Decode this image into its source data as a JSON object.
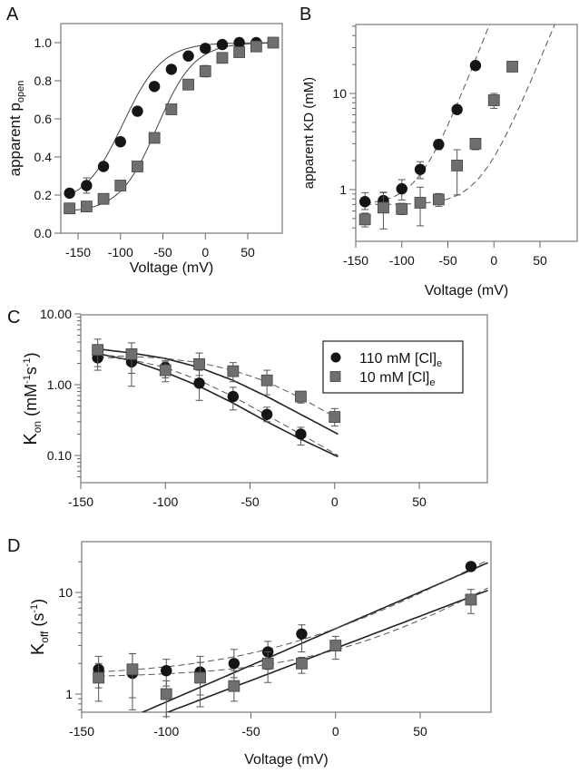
{
  "figure": {
    "panels": [
      "A",
      "B",
      "C",
      "D"
    ]
  },
  "legend": {
    "series1": {
      "label": "110 mM [Cl]",
      "subscript": "e",
      "marker": "circle",
      "color": "#151515"
    },
    "series2": {
      "label": "10 mM [Cl]",
      "subscript": "e",
      "marker": "square",
      "color": "#6f6f6f"
    }
  },
  "chart_data": [
    {
      "panel": "A",
      "type": "line",
      "xlabel": "Voltage (mV)",
      "ylabel": "apparent p",
      "ylabel_sub": "open",
      "xlim": [
        -170,
        90
      ],
      "ylim": [
        0.0,
        1.1
      ],
      "xticks": [
        -150,
        -100,
        -50,
        0,
        50
      ],
      "yticks": [
        0.0,
        0.2,
        0.4,
        0.6,
        0.8,
        1.0
      ],
      "ytick_labels": [
        "0.0",
        "0.2",
        "0.4",
        "0.6",
        "0.8",
        "1.0"
      ],
      "yscale": "linear",
      "series": [
        {
          "name": "110 mM [Cl]e",
          "marker": "circle",
          "x": [
            -160,
            -140,
            -120,
            -100,
            -80,
            -60,
            -40,
            -20,
            0,
            20,
            40,
            60,
            80
          ],
          "y": [
            0.21,
            0.25,
            0.35,
            0.48,
            0.64,
            0.77,
            0.86,
            0.93,
            0.97,
            0.99,
            1.0,
            1.0,
            1.0
          ],
          "err": [
            0.01,
            0.04,
            0.02,
            0.01,
            0.02,
            0.02,
            0.02,
            0.01,
            0.01,
            0.01,
            0.01,
            0.0,
            0.0
          ]
        },
        {
          "name": "10 mM [Cl]e",
          "marker": "square",
          "x": [
            -160,
            -140,
            -120,
            -100,
            -80,
            -60,
            -40,
            -20,
            0,
            20,
            40,
            60,
            80
          ],
          "y": [
            0.13,
            0.14,
            0.18,
            0.25,
            0.35,
            0.5,
            0.65,
            0.78,
            0.85,
            0.92,
            0.95,
            0.98,
            1.0
          ],
          "err": [
            0.0,
            0.01,
            0.01,
            0.01,
            0.01,
            0.01,
            0.01,
            0.01,
            0.03,
            0.01,
            0.01,
            0.0,
            0.0
          ]
        }
      ],
      "fits": [
        {
          "series": "110 mM [Cl]e",
          "style": "solid",
          "kind": "boltzmann",
          "vhalf": -97,
          "slope": 23,
          "bottom": 0.15,
          "top": 1.0
        },
        {
          "series": "10 mM [Cl]e",
          "style": "solid",
          "kind": "boltzmann",
          "vhalf": -57,
          "slope": 22,
          "bottom": 0.11,
          "top": 1.0
        }
      ]
    },
    {
      "panel": "B",
      "type": "scatter",
      "xlabel": "Voltage (mV)",
      "ylabel": "apparent KD (mM)",
      "xlim": [
        -150,
        90
      ],
      "ylim": [
        0.4,
        50
      ],
      "yscale": "log",
      "xticks": [
        -150,
        -100,
        -50,
        0,
        50
      ],
      "yticks": [
        1,
        10
      ],
      "ytick_labels": [
        "1",
        "10"
      ],
      "series": [
        {
          "name": "110 mM [Cl]e",
          "marker": "circle",
          "x": [
            -140,
            -120,
            -100,
            -80,
            -60,
            -40,
            -20
          ],
          "y": [
            0.75,
            0.77,
            1.02,
            1.62,
            2.95,
            6.8,
            19.5
          ],
          "err_lo": [
            0.62,
            0.62,
            0.78,
            1.3,
            2.6,
            6.2,
            18.5
          ],
          "err_hi": [
            0.93,
            0.94,
            1.27,
            1.95,
            3.3,
            7.4,
            20.5
          ]
        },
        {
          "name": "10 mM [Cl]e",
          "marker": "square",
          "x": [
            -140,
            -120,
            -100,
            -80,
            -60,
            -40,
            -20,
            0,
            20
          ],
          "y": [
            0.49,
            0.65,
            0.63,
            0.73,
            0.79,
            1.78,
            3.0,
            8.5,
            19.0
          ],
          "err_lo": [
            0.41,
            0.39,
            0.55,
            0.42,
            0.67,
            0.88,
            2.6,
            7.0,
            18.0
          ],
          "err_hi": [
            0.57,
            0.93,
            0.72,
            1.06,
            0.91,
            2.6,
            3.4,
            10.0,
            20.0
          ]
        }
      ],
      "fits": [
        {
          "series": "110 mM [Cl]e",
          "style": "dashed",
          "kind": "kd",
          "k0": 0.7,
          "a": 7.2e-06,
          "b": 0.0594
        },
        {
          "series": "10 mM [Cl]e",
          "style": "dashed",
          "kind": "kd",
          "k0": 0.7,
          "a": 0.3,
          "b": 0.0507
        }
      ]
    },
    {
      "panel": "C",
      "type": "scatter",
      "xlabel": "",
      "ylabel": "K",
      "ylabel_sub": "on",
      "ylabel_unit": "(mM",
      "ylabel_unit_sup1": "-1",
      "ylabel_unit_mid": "s",
      "ylabel_unit_sup2": "-1",
      "ylabel_unit_end": ")",
      "xlim": [
        -150,
        90
      ],
      "ylim": [
        0.04,
        10
      ],
      "yscale": "log",
      "xticks": [
        -150,
        -100,
        -50,
        0,
        50
      ],
      "yticks": [
        0.1,
        1,
        10
      ],
      "ytick_labels": [
        "0.10",
        "1.00",
        "10.00"
      ],
      "legend_position": "top-right",
      "series": [
        {
          "name": "110 mM [Cl]e",
          "marker": "circle",
          "x": [
            -140,
            -120,
            -100,
            -80,
            -60,
            -40,
            -20
          ],
          "y": [
            2.4,
            2.1,
            1.75,
            1.05,
            0.68,
            0.38,
            0.2
          ],
          "err_lo": [
            1.6,
            1.45,
            1.25,
            0.6,
            0.44,
            0.3,
            0.14
          ],
          "err_hi": [
            2.8,
            2.8,
            2.1,
            1.6,
            0.92,
            0.48,
            0.25
          ]
        },
        {
          "name": "10 mM [Cl]e",
          "marker": "square",
          "x": [
            -140,
            -120,
            -100,
            -80,
            -60,
            -40,
            -20,
            0
          ],
          "y": [
            3.1,
            2.7,
            1.6,
            1.95,
            1.55,
            1.15,
            0.68,
            0.35
          ],
          "err_lo": [
            1.8,
            0.95,
            1.1,
            1.35,
            1.1,
            0.72,
            0.55,
            0.26
          ],
          "err_hi": [
            4.4,
            3.9,
            2.2,
            2.8,
            2.05,
            1.6,
            0.8,
            0.46
          ]
        }
      ],
      "fits": [
        {
          "series": "110 mM [Cl]e",
          "style": "solid",
          "x": [
            -140,
            2
          ],
          "kind": "kon",
          "pts": [
            [
              -140,
              2.75
            ],
            [
              -120,
              2.2
            ],
            [
              -100,
              1.5
            ],
            [
              -80,
              0.95
            ],
            [
              -60,
              0.55
            ],
            [
              -40,
              0.3
            ],
            [
              -20,
              0.17
            ],
            [
              2,
              0.096
            ]
          ]
        },
        {
          "series": "10 mM [Cl]e",
          "style": "solid",
          "x": [
            -140,
            2
          ],
          "kind": "kon",
          "pts": [
            [
              -140,
              3.2
            ],
            [
              -120,
              2.8
            ],
            [
              -100,
              2.35
            ],
            [
              -80,
              1.75
            ],
            [
              -60,
              1.15
            ],
            [
              -40,
              0.68
            ],
            [
              -20,
              0.38
            ],
            [
              2,
              0.2
            ]
          ]
        },
        {
          "series": "110 mM [Cl]e",
          "style": "dashed",
          "x": [
            -140,
            2
          ],
          "kind": "kon",
          "pts": [
            [
              -140,
              2.5
            ],
            [
              -120,
              2.25
            ],
            [
              -100,
              1.75
            ],
            [
              -80,
              1.15
            ],
            [
              -60,
              0.68
            ],
            [
              -40,
              0.37
            ],
            [
              -20,
              0.2
            ],
            [
              2,
              0.1
            ]
          ]
        },
        {
          "series": "10 mM [Cl]e",
          "style": "dashed",
          "x": [
            -140,
            2
          ],
          "kind": "kon",
          "pts": [
            [
              -140,
              2.6
            ],
            [
              -120,
              2.5
            ],
            [
              -100,
              2.35
            ],
            [
              -80,
              2.05
            ],
            [
              -60,
              1.6
            ],
            [
              -40,
              1.1
            ],
            [
              -20,
              0.65
            ],
            [
              2,
              0.33
            ]
          ]
        }
      ]
    },
    {
      "panel": "D",
      "type": "scatter",
      "xlabel": "Voltage (mV)",
      "ylabel": "K",
      "ylabel_sub": "off",
      "ylabel_unit": "(s",
      "ylabel_unit_sup1": "-1",
      "ylabel_unit_end": ")",
      "xlim": [
        -150,
        90
      ],
      "ylim": [
        0.7,
        22
      ],
      "yscale": "log",
      "xticks": [
        -150,
        -100,
        -50,
        0,
        50
      ],
      "yticks": [
        1,
        10
      ],
      "ytick_labels": [
        "1",
        "10"
      ],
      "series": [
        {
          "name": "110 mM [Cl]e",
          "marker": "circle",
          "x": [
            -140,
            -120,
            -100,
            -80,
            -60,
            -40,
            -20,
            80
          ],
          "y": [
            1.75,
            1.6,
            1.7,
            1.65,
            2.0,
            2.6,
            3.9,
            18.0
          ],
          "err_lo": [
            1.15,
            0.7,
            1.2,
            0.98,
            1.45,
            1.75,
            2.6,
            16.5
          ],
          "err_hi": [
            2.35,
            2.5,
            2.2,
            2.35,
            2.75,
            3.3,
            4.8,
            19.0
          ]
        },
        {
          "name": "10 mM [Cl]e",
          "marker": "square",
          "x": [
            -140,
            -120,
            -100,
            -80,
            -60,
            -40,
            -20,
            0,
            80
          ],
          "y": [
            1.45,
            1.75,
            1.0,
            1.45,
            1.2,
            2.0,
            2.0,
            3.0,
            8.5
          ],
          "err_lo": [
            0.85,
            0.92,
            0.6,
            0.75,
            0.85,
            1.3,
            1.6,
            2.2,
            6.2
          ],
          "err_hi": [
            2.0,
            2.5,
            1.35,
            2.05,
            1.7,
            2.6,
            2.3,
            3.7,
            10.7
          ]
        }
      ],
      "fits": [
        {
          "series": "110 mM [Cl]e",
          "style": "solid",
          "kind": "koff",
          "a": 4.4,
          "b": 0.0166,
          "c": 0.0
        },
        {
          "series": "10 mM [Cl]e",
          "style": "solid",
          "kind": "koff",
          "a": 2.82,
          "b": 0.0146,
          "c": 0.0
        },
        {
          "series": "110 mM [Cl]e",
          "style": "dashed",
          "kind": "koff",
          "a": 2.92,
          "b": 0.021,
          "c": 1.5
        },
        {
          "series": "10 mM [Cl]e",
          "style": "dashed",
          "kind": "koff",
          "a": 1.27,
          "b": 0.0225,
          "c": 1.45
        }
      ]
    }
  ]
}
